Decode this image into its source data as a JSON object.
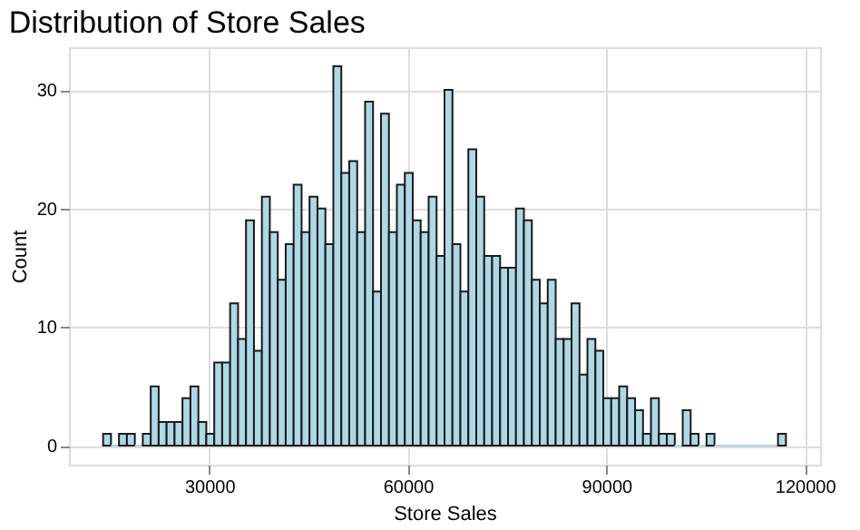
{
  "chart_data": {
    "type": "histogram",
    "title": "Distribution of Store Sales",
    "xlabel": "Store Sales",
    "ylabel": "Count",
    "color": "#add8e6",
    "bins": [
      13950,
      15150,
      16350,
      17550,
      18750,
      19950,
      21150,
      22350,
      23550,
      24750,
      25950,
      27150,
      28350,
      29550,
      30750,
      31950,
      33150,
      34350,
      35550,
      36750,
      37950,
      39150,
      40350,
      41550,
      42750,
      43950,
      45150,
      46350,
      47550,
      48750,
      49950,
      51150,
      52350,
      53550,
      54750,
      55950,
      57150,
      58350,
      59550,
      60750,
      61950,
      63150,
      64350,
      65550,
      66750,
      67950,
      69150,
      70350,
      71550,
      72750,
      73950,
      75150,
      76350,
      77550,
      78750,
      79950,
      81150,
      82350,
      83550,
      84750,
      85950,
      87150,
      88350,
      89550,
      90750,
      91950,
      93150,
      94350,
      95550,
      96750,
      97950,
      99150,
      100350,
      101550,
      102750,
      103950,
      105150,
      106350,
      107550,
      108750,
      109950,
      111150,
      112350,
      113550,
      114750,
      115950,
      117150
    ],
    "values": [
      1,
      0,
      1,
      1,
      0,
      1,
      5,
      2,
      2,
      2,
      4,
      5,
      2,
      1,
      7,
      7,
      12,
      9,
      19,
      8,
      21,
      18,
      14,
      17,
      22,
      18,
      21,
      20,
      17,
      32,
      23,
      24,
      18,
      29,
      13,
      28,
      18,
      22,
      23,
      19,
      18,
      21,
      16,
      30,
      17,
      13,
      25,
      21,
      16,
      16,
      15,
      15,
      20,
      19,
      14,
      12,
      14,
      9,
      9,
      12,
      6,
      9,
      8,
      4,
      4,
      5,
      4,
      3,
      1,
      4,
      1,
      1,
      0,
      3,
      1,
      0,
      1,
      0,
      0,
      0,
      0,
      0,
      0,
      0,
      0,
      1
    ],
    "xlim": [
      8790,
      122310
    ],
    "ylim": [
      -1.6,
      33.6
    ],
    "xticks": [
      30000,
      60000,
      90000,
      120000
    ],
    "yticks": [
      0,
      10,
      20,
      30
    ],
    "grid": true
  }
}
